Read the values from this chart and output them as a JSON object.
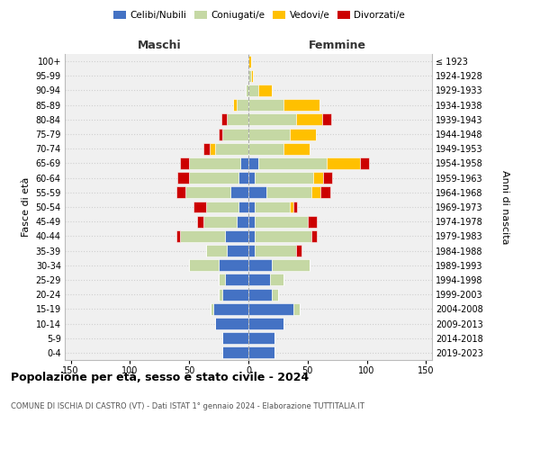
{
  "age_groups_bottom_to_top": [
    "0-4",
    "5-9",
    "10-14",
    "15-19",
    "20-24",
    "25-29",
    "30-34",
    "35-39",
    "40-44",
    "45-49",
    "50-54",
    "55-59",
    "60-64",
    "65-69",
    "70-74",
    "75-79",
    "80-84",
    "85-89",
    "90-94",
    "95-99",
    "100+"
  ],
  "birth_years_bottom_to_top": [
    "2019-2023",
    "2014-2018",
    "2009-2013",
    "2004-2008",
    "1999-2003",
    "1994-1998",
    "1989-1993",
    "1984-1988",
    "1979-1983",
    "1974-1978",
    "1969-1973",
    "1964-1968",
    "1959-1963",
    "1954-1958",
    "1949-1953",
    "1944-1948",
    "1939-1943",
    "1934-1938",
    "1929-1933",
    "1924-1928",
    "≤ 1923"
  ],
  "colors": {
    "celibi": "#4472c4",
    "coniugati": "#c5d8a4",
    "vedovi": "#ffc000",
    "divorziati": "#cc0000"
  },
  "maschi": {
    "celibi": [
      22,
      22,
      28,
      30,
      22,
      20,
      25,
      18,
      20,
      10,
      8,
      15,
      8,
      7,
      0,
      0,
      0,
      0,
      0,
      0,
      0
    ],
    "coniugati": [
      0,
      0,
      0,
      2,
      3,
      5,
      25,
      18,
      38,
      28,
      28,
      38,
      42,
      43,
      28,
      22,
      18,
      10,
      2,
      0,
      0
    ],
    "vedovi": [
      0,
      0,
      0,
      0,
      0,
      0,
      0,
      0,
      0,
      0,
      0,
      0,
      0,
      0,
      5,
      0,
      0,
      3,
      0,
      0,
      0
    ],
    "divorziati": [
      0,
      0,
      0,
      0,
      0,
      0,
      0,
      0,
      3,
      5,
      10,
      8,
      10,
      8,
      5,
      3,
      5,
      0,
      0,
      0,
      0
    ]
  },
  "femmine": {
    "celibi": [
      22,
      22,
      30,
      38,
      20,
      18,
      20,
      5,
      5,
      5,
      5,
      15,
      5,
      8,
      0,
      0,
      0,
      0,
      0,
      0,
      0
    ],
    "coniugati": [
      0,
      0,
      0,
      5,
      5,
      12,
      32,
      35,
      48,
      45,
      30,
      38,
      50,
      58,
      30,
      35,
      40,
      30,
      8,
      2,
      0
    ],
    "vedovi": [
      0,
      0,
      0,
      0,
      0,
      0,
      0,
      0,
      0,
      0,
      3,
      8,
      8,
      28,
      22,
      22,
      22,
      30,
      12,
      2,
      2
    ],
    "divorziati": [
      0,
      0,
      0,
      0,
      0,
      0,
      0,
      5,
      5,
      8,
      3,
      8,
      8,
      8,
      0,
      0,
      8,
      0,
      0,
      0,
      0
    ]
  },
  "title": "Popolazione per età, sesso e stato civile - 2024",
  "subtitle": "COMUNE DI ISCHIA DI CASTRO (VT) - Dati ISTAT 1° gennaio 2024 - Elaborazione TUTTITALIA.IT",
  "xlabel_maschi": "Maschi",
  "xlabel_femmine": "Femmine",
  "ylabel_left": "Fasce di età",
  "ylabel_right": "Anni di nascita",
  "xlim": 155,
  "background_color": "#ffffff",
  "plot_bg": "#f0f0f0",
  "grid_color": "#d0d0d0"
}
